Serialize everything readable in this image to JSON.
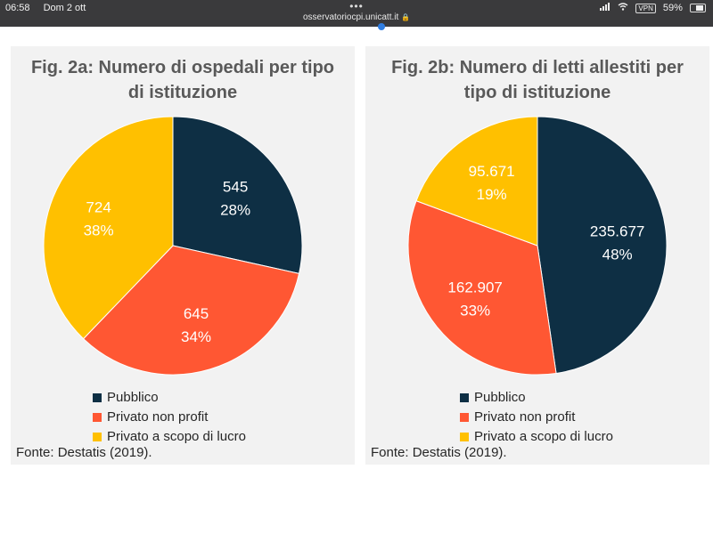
{
  "status_bar": {
    "time": "06:58",
    "date": "Dom 2 ott",
    "dots": "•••",
    "url": "osservatoriocpi.unicatt.it",
    "lock_glyph": "🔒",
    "vpn": "VPN",
    "battery": "59%",
    "battery_level": 0.59
  },
  "colors": {
    "pubblico": "#0e2f44",
    "non_profit": "#ff5733",
    "lucro": "#ffc000"
  },
  "chart_data": [
    {
      "type": "pie",
      "title": "Fig. 2a: Numero di ospedali per tipo di istituzione",
      "categories": [
        "Pubblico",
        "Privato non profit",
        "Privato a scopo di lucro"
      ],
      "values": [
        545,
        645,
        724
      ],
      "value_labels": [
        "545",
        "645",
        "724"
      ],
      "percent_labels": [
        "28%",
        "34%",
        "38%"
      ],
      "legend": "bottom-left",
      "source": "Fonte: Destatis (2019)."
    },
    {
      "type": "pie",
      "title": "Fig. 2b: Numero di letti allestiti per tipo di istituzione",
      "categories": [
        "Pubblico",
        "Privato non profit",
        "Privato a scopo di lucro"
      ],
      "values": [
        235677,
        162907,
        95671
      ],
      "value_labels": [
        "235.677",
        "162.907",
        "95.671"
      ],
      "percent_labels": [
        "48%",
        "33%",
        "19%"
      ],
      "legend": "bottom-left",
      "source": "Fonte: Destatis (2019)."
    }
  ]
}
